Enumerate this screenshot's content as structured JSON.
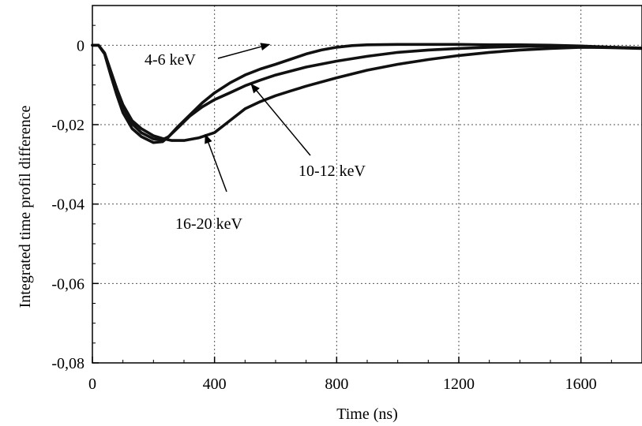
{
  "chart_data": {
    "type": "line",
    "title": "",
    "xlabel": "Time (ns)",
    "ylabel": "Integrated time profil difference",
    "xlim": [
      0,
      1800
    ],
    "ylim": [
      -0.08,
      0.01
    ],
    "x_ticks": [
      0,
      400,
      800,
      1200,
      1600
    ],
    "x_tick_labels": [
      "0",
      "400",
      "800",
      "1200",
      "1600"
    ],
    "y_ticks": [
      0,
      -0.02,
      -0.04,
      -0.06,
      -0.08
    ],
    "y_tick_labels": [
      "0",
      "-0,02",
      "-0,04",
      "-0,06",
      "-0,08"
    ],
    "grid": true,
    "series": [
      {
        "name": "4-6 keV",
        "x": [
          0,
          20,
          40,
          60,
          80,
          100,
          130,
          160,
          200,
          230,
          250,
          280,
          320,
          360,
          400,
          450,
          500,
          550,
          600,
          650,
          700,
          750,
          800,
          850,
          900,
          1000,
          1100,
          1200,
          1300,
          1400,
          1500,
          1600,
          1700,
          1800
        ],
        "y": [
          0,
          0,
          -0.0022,
          -0.0075,
          -0.0125,
          -0.017,
          -0.021,
          -0.023,
          -0.0245,
          -0.0243,
          -0.023,
          -0.0205,
          -0.0175,
          -0.0145,
          -0.012,
          -0.0095,
          -0.0075,
          -0.006,
          -0.0048,
          -0.0035,
          -0.0022,
          -0.0012,
          -0.0005,
          -0.0001,
          0.0001,
          0.0002,
          0.0002,
          0.0002,
          0.0001,
          0.0001,
          0,
          -0.0002,
          -0.0005,
          -0.0007
        ]
      },
      {
        "name": "10-12 keV",
        "x": [
          0,
          20,
          40,
          60,
          80,
          100,
          130,
          160,
          200,
          230,
          250,
          280,
          320,
          360,
          400,
          450,
          500,
          550,
          600,
          700,
          800,
          900,
          1000,
          1100,
          1200,
          1300,
          1400,
          1500,
          1600,
          1700,
          1800
        ],
        "y": [
          0,
          0,
          -0.002,
          -0.0065,
          -0.011,
          -0.0155,
          -0.0198,
          -0.022,
          -0.0236,
          -0.0238,
          -0.023,
          -0.0208,
          -0.0178,
          -0.0155,
          -0.0137,
          -0.012,
          -0.0102,
          -0.0088,
          -0.0075,
          -0.0055,
          -0.004,
          -0.0028,
          -0.0018,
          -0.0012,
          -0.0008,
          -0.0005,
          -0.0003,
          -0.0002,
          -0.0003,
          -0.0005,
          -0.0007
        ]
      },
      {
        "name": "16-20 keV",
        "x": [
          0,
          20,
          40,
          60,
          80,
          100,
          130,
          160,
          200,
          230,
          260,
          300,
          350,
          400,
          450,
          500,
          550,
          600,
          650,
          700,
          800,
          900,
          1000,
          1100,
          1200,
          1300,
          1400,
          1500,
          1600,
          1700,
          1800
        ],
        "y": [
          0,
          0,
          -0.002,
          -0.0065,
          -0.011,
          -0.015,
          -0.019,
          -0.021,
          -0.0228,
          -0.0235,
          -0.024,
          -0.024,
          -0.0233,
          -0.022,
          -0.019,
          -0.016,
          -0.0142,
          -0.0127,
          -0.0115,
          -0.0103,
          -0.0082,
          -0.0063,
          -0.0048,
          -0.0036,
          -0.0026,
          -0.0018,
          -0.0012,
          -0.0008,
          -0.0005,
          -0.0006,
          -0.0008
        ]
      }
    ],
    "annotations": [
      {
        "text": "4-6 keV",
        "arrow_to": [
          580,
          0.0002
        ]
      },
      {
        "text": "10-12 keV",
        "arrow_to": [
          520,
          -0.0098
        ]
      },
      {
        "text": "16-20 keV",
        "arrow_to": [
          370,
          -0.0225
        ]
      }
    ]
  }
}
